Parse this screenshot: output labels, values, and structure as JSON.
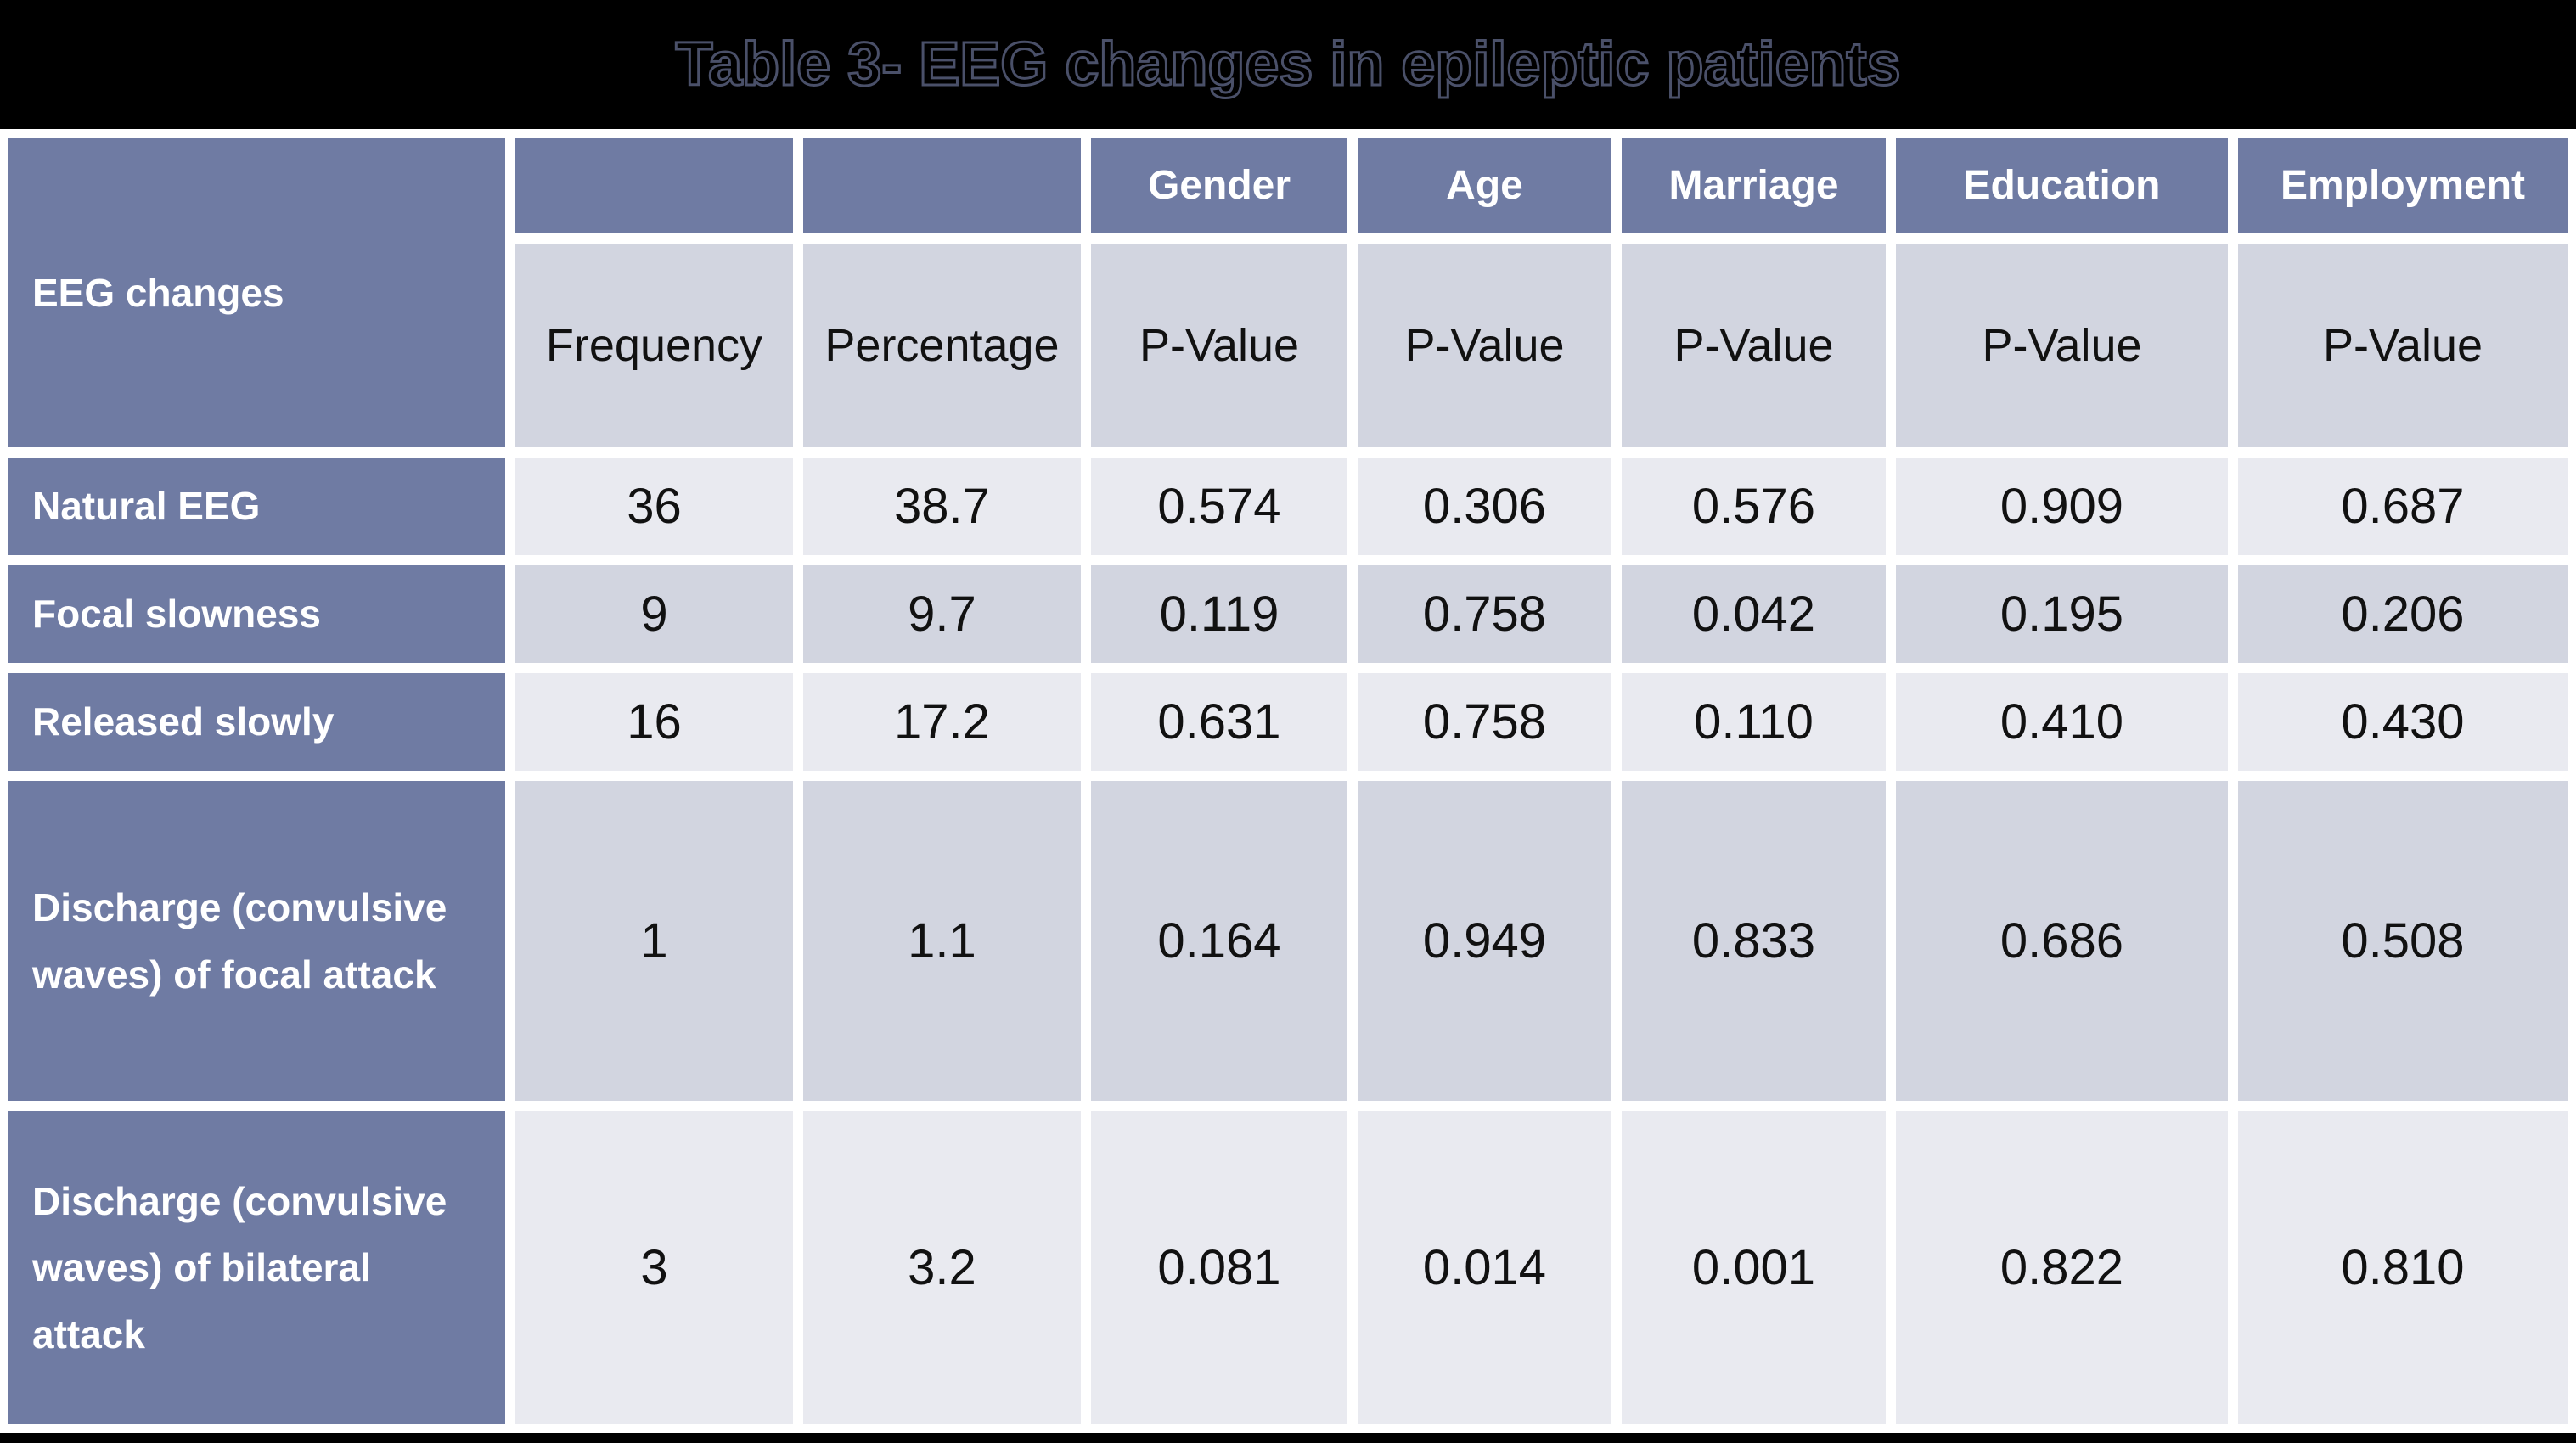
{
  "title": "Table 3- EEG changes in epileptic patients",
  "colors": {
    "background": "#000000",
    "header_blue": "#6F7BA3",
    "row_light": "#E9EAF0",
    "row_mid": "#D2D5E0",
    "grid_gap": "#ffffff",
    "header_text": "#ffffff",
    "data_text": "#111111",
    "title_outline": "#4a5069"
  },
  "table": {
    "corner_label": "EEG changes",
    "group_headers": [
      "Gender",
      "Age",
      "Marriage",
      "Education",
      "Employment"
    ],
    "sub_headers": [
      "Frequency",
      "Percentage",
      "P-Value",
      "P-Value",
      "P-Value",
      "P-Value",
      "P-Value"
    ],
    "rows": [
      {
        "label": "Natural EEG",
        "values": [
          "36",
          "38.7",
          "0.574",
          "0.306",
          "0.576",
          "0.909",
          "0.687"
        ]
      },
      {
        "label": "Focal slowness",
        "values": [
          "9",
          "9.7",
          "0.119",
          "0.758",
          "0.042",
          "0.195",
          "0.206"
        ]
      },
      {
        "label": "Released slowly",
        "values": [
          "16",
          "17.2",
          "0.631",
          "0.758",
          "0.110",
          "0.410",
          "0.430"
        ]
      },
      {
        "label": "Discharge (convulsive waves) of focal attack",
        "values": [
          "1",
          "1.1",
          "0.164",
          "0.949",
          "0.833",
          "0.686",
          "0.508"
        ]
      },
      {
        "label": "Discharge (convulsive waves) of bilateral attack",
        "values": [
          "3",
          "3.2",
          "0.081",
          "0.014",
          "0.001",
          "0.822",
          "0.810"
        ]
      }
    ]
  }
}
